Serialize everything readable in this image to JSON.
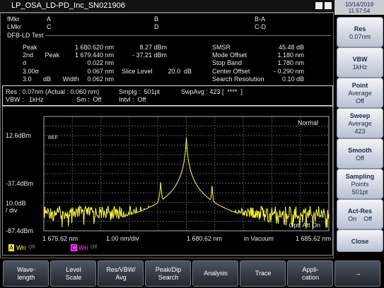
{
  "title_bar": {
    "title": "LP_OSA_LD-PD_Inc_SN021906"
  },
  "clock": {
    "date": "10/14/2019",
    "time": "11:57:54"
  },
  "markers": {
    "rows": [
      [
        "fMkr",
        "A",
        "B",
        "B-A"
      ],
      [
        "LMkr",
        "C",
        "D",
        "C-D"
      ]
    ]
  },
  "analysis": {
    "title": "DFB-LD Test",
    "left": [
      {
        "label": "Peak",
        "value": "1 680.620 nm",
        "level": "8.27 dBm"
      },
      {
        "label": "2nd Peak",
        "value": "1 679.440 nm",
        "level": "- 37.21 dBm"
      },
      {
        "label": "σ",
        "value": "0.022 nm"
      },
      {
        "label": "3.00σ",
        "value": "0.067 nm"
      },
      {
        "label": "3.0 dB Width",
        "value": "0.062 nm"
      }
    ],
    "slice_level": {
      "label": "Slice Level",
      "value": "20.0  dB"
    },
    "right": [
      {
        "label": "SMSR",
        "value": "45.48 dB"
      },
      {
        "label": "Mode Offset",
        "value": "1.180 nm"
      },
      {
        "label": "Stop Band",
        "value": "1.780 nm"
      },
      {
        "label": "Center Offset",
        "value": "- 0.290 nm"
      },
      {
        "label": "Search Resolution",
        "value": "0.10 dB"
      }
    ]
  },
  "settings": {
    "row1": [
      "Res : 0.07nm (Actual : 0.060 nm)",
      "Smplg :  501pt",
      "SwpAvg : 423 [  ****  ]"
    ],
    "row2": [
      "VBW :   1kHz",
      "Sm :  Off",
      "Intvl :  Off"
    ]
  },
  "graph": {
    "ref_level": "12.6dBm",
    "mid_level": "-37.4dBm",
    "scale": "10.0dB\n/ div",
    "bottom_level": "-87.4dBm",
    "ref": "REF",
    "mode": "Normal",
    "attenuator": "Opt. Att On",
    "x_labels": [
      "1 675.62 nm",
      "1.00 nm/div",
      "1 680.62 nm",
      "in Vacuum",
      "1 685.62 nm"
    ]
  },
  "traces": [
    {
      "id": "A",
      "mode": "Wri",
      "state": "Off"
    },
    {
      "id": "C",
      "mode": "Wri",
      "state": "Off"
    }
  ],
  "side_buttons": [
    {
      "lines": [
        "Res",
        "0.07nm"
      ]
    },
    {
      "lines": [
        "VBW",
        "1kHz"
      ]
    },
    {
      "lines": [
        "Point",
        "Average",
        "Off"
      ]
    },
    {
      "lines": [
        "Sweep",
        "Average",
        "423"
      ]
    },
    {
      "lines": [
        "Smooth",
        "Off"
      ]
    },
    {
      "lines": [
        "Sampling",
        "Points",
        "501pt"
      ]
    },
    {
      "lines": [
        "Act-Res",
        "On    Off"
      ]
    },
    {
      "lines": [
        "Close"
      ]
    }
  ],
  "softkeys": [
    [
      "Wave-",
      "length"
    ],
    [
      "Level",
      "Scale"
    ],
    [
      "Res/VBW/",
      "Avg"
    ],
    [
      "Peak/Dip",
      "Search"
    ],
    [
      "Analysis"
    ],
    [
      "Trace"
    ],
    [
      "Appli-",
      "cation"
    ],
    [
      "→"
    ]
  ]
}
